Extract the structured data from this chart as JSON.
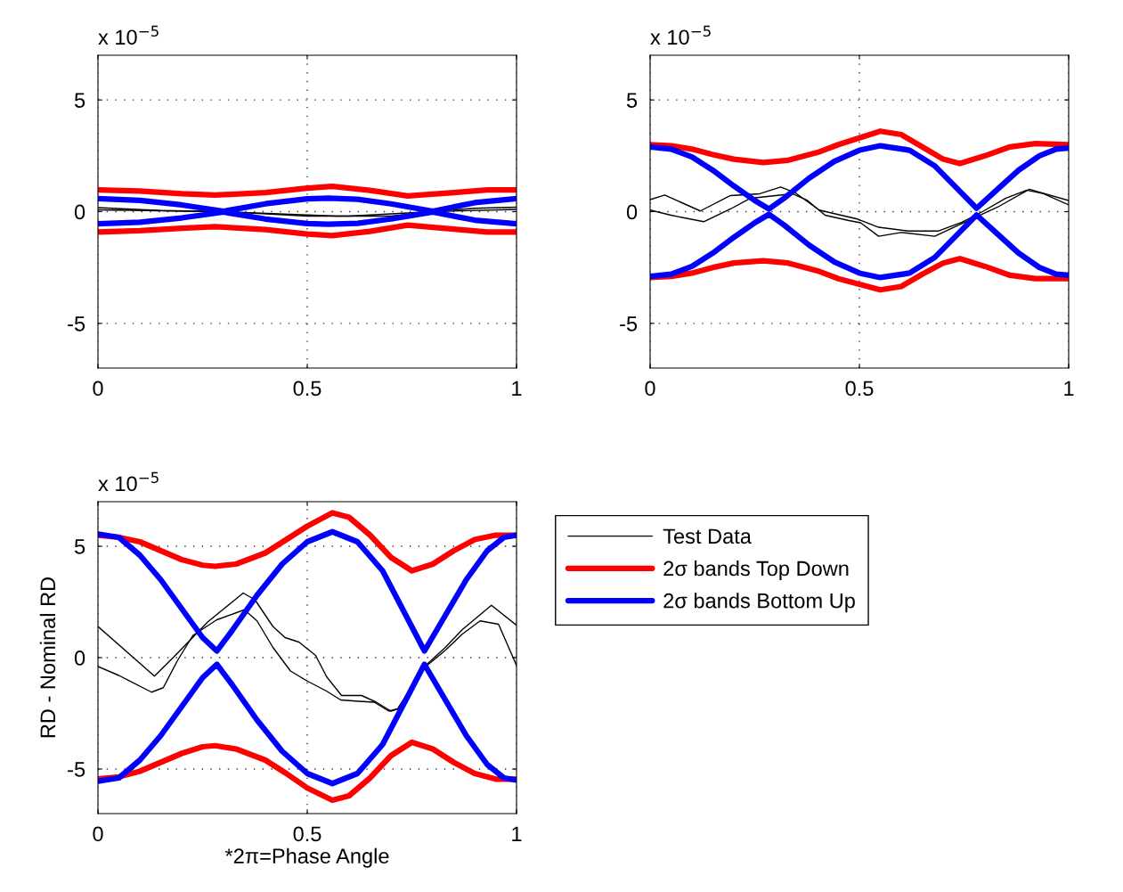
{
  "chart_data": [
    {
      "type": "line",
      "annotations": [
        "x 10$^{−5}$"
      ],
      "xlim": [
        0,
        1
      ],
      "ylim": [
        -7,
        7
      ],
      "xticks": [
        0,
        0.5,
        1
      ],
      "yticks": [
        -5,
        0,
        5
      ],
      "grid": true,
      "series": [
        {
          "color": "#000000",
          "x": [
            0,
            0.15,
            0.3,
            0.5,
            0.57,
            0.7,
            0.8,
            0.9,
            1
          ],
          "values": [
            0.18,
            0.05,
            0.0,
            -0.15,
            -0.2,
            -0.2,
            0.0,
            0.15,
            0.2
          ]
        },
        {
          "color": "#000000",
          "x": [
            0,
            0.3,
            0.5,
            0.6,
            0.8,
            1
          ],
          "values": [
            0.08,
            0.0,
            -0.2,
            -0.2,
            0.0,
            0.1
          ]
        },
        {
          "color": "#ff0000",
          "x": [
            0,
            0.1,
            0.2,
            0.28,
            0.4,
            0.5,
            0.56,
            0.65,
            0.74,
            0.85,
            0.93,
            1
          ],
          "values": [
            0.97,
            0.92,
            0.8,
            0.74,
            0.85,
            1.05,
            1.13,
            0.95,
            0.7,
            0.85,
            0.97,
            0.97
          ]
        },
        {
          "color": "#ff0000",
          "x": [
            0,
            0.1,
            0.2,
            0.28,
            0.4,
            0.5,
            0.56,
            0.65,
            0.74,
            0.85,
            0.93,
            1
          ],
          "values": [
            -0.91,
            -0.85,
            -0.74,
            -0.67,
            -0.8,
            -1.0,
            -1.07,
            -0.88,
            -0.6,
            -0.78,
            -0.91,
            -0.91
          ]
        },
        {
          "color": "#0000ff",
          "x": [
            0,
            0.1,
            0.2,
            0.3,
            0.4,
            0.5,
            0.55,
            0.62,
            0.7,
            0.8,
            0.9,
            1
          ],
          "values": [
            0.58,
            0.5,
            0.3,
            0.02,
            0.35,
            0.57,
            0.6,
            0.55,
            0.35,
            0.02,
            0.4,
            0.58
          ]
        },
        {
          "color": "#0000ff",
          "x": [
            0,
            0.1,
            0.2,
            0.3,
            0.4,
            0.5,
            0.55,
            0.62,
            0.7,
            0.8,
            0.9,
            1
          ],
          "values": [
            -0.54,
            -0.47,
            -0.28,
            -0.02,
            -0.33,
            -0.53,
            -0.56,
            -0.52,
            -0.33,
            -0.02,
            -0.38,
            -0.54
          ]
        }
      ]
    },
    {
      "type": "line",
      "annotations": [
        "x 10$^{−5}$"
      ],
      "xlim": [
        0,
        1
      ],
      "ylim": [
        -7,
        7
      ],
      "xticks": [
        0,
        0.5,
        1
      ],
      "yticks": [
        -5,
        0,
        5
      ],
      "grid": true,
      "series": [
        {
          "color": "#000000",
          "x": [
            0,
            0.035,
            0.12,
            0.192,
            0.262,
            0.312,
            0.348,
            0.404,
            0.497,
            0.546,
            0.617,
            0.688,
            0.745,
            0.794,
            0.85,
            0.9,
            0.94,
            1
          ],
          "values": [
            0.54,
            0.74,
            0.03,
            0.72,
            0.8,
            1.1,
            0.83,
            0.07,
            -0.34,
            -0.7,
            -0.87,
            -0.87,
            -0.47,
            0.0,
            0.6,
            0.96,
            0.8,
            0.3
          ]
        },
        {
          "color": "#000000",
          "x": [
            0,
            0.05,
            0.128,
            0.192,
            0.24,
            0.34,
            0.376,
            0.418,
            0.475,
            0.503,
            0.546,
            0.6,
            0.68,
            0.745,
            0.83,
            0.906,
            1
          ],
          "values": [
            0.07,
            -0.16,
            -0.45,
            0.12,
            0.6,
            0.8,
            0.5,
            -0.16,
            -0.4,
            -0.5,
            -1.1,
            -0.93,
            -1.1,
            -0.53,
            0.2,
            1.0,
            0.5
          ]
        },
        {
          "color": "#ff0000",
          "x": [
            0,
            0.05,
            0.1,
            0.15,
            0.2,
            0.27,
            0.33,
            0.4,
            0.45,
            0.5,
            0.55,
            0.6,
            0.65,
            0.7,
            0.74,
            0.8,
            0.86,
            0.92,
            1
          ],
          "values": [
            3.0,
            2.95,
            2.8,
            2.55,
            2.35,
            2.2,
            2.3,
            2.65,
            3.0,
            3.3,
            3.6,
            3.45,
            2.9,
            2.35,
            2.15,
            2.5,
            2.9,
            3.05,
            3.0
          ]
        },
        {
          "color": "#ff0000",
          "x": [
            0,
            0.05,
            0.1,
            0.15,
            0.2,
            0.27,
            0.33,
            0.4,
            0.45,
            0.5,
            0.55,
            0.6,
            0.65,
            0.7,
            0.74,
            0.8,
            0.86,
            0.92,
            1
          ],
          "values": [
            -2.95,
            -2.9,
            -2.75,
            -2.5,
            -2.3,
            -2.2,
            -2.3,
            -2.65,
            -3.0,
            -3.25,
            -3.5,
            -3.35,
            -2.8,
            -2.3,
            -2.1,
            -2.45,
            -2.85,
            -3.0,
            -3.0
          ]
        },
        {
          "color": "#0000ff",
          "x": [
            0,
            0.05,
            0.1,
            0.15,
            0.2,
            0.25,
            0.284,
            0.32,
            0.38,
            0.44,
            0.5,
            0.55,
            0.62,
            0.68,
            0.73,
            0.78,
            0.83,
            0.88,
            0.93,
            0.97,
            1
          ],
          "values": [
            2.9,
            2.8,
            2.45,
            1.85,
            1.15,
            0.5,
            0.12,
            0.6,
            1.5,
            2.25,
            2.75,
            2.95,
            2.75,
            2.05,
            1.1,
            0.15,
            1.0,
            1.85,
            2.5,
            2.8,
            2.85
          ]
        },
        {
          "color": "#0000ff",
          "x": [
            0,
            0.05,
            0.1,
            0.15,
            0.2,
            0.25,
            0.284,
            0.32,
            0.38,
            0.44,
            0.5,
            0.55,
            0.62,
            0.68,
            0.73,
            0.78,
            0.83,
            0.88,
            0.93,
            0.97,
            1
          ],
          "values": [
            -2.9,
            -2.8,
            -2.45,
            -1.85,
            -1.15,
            -0.5,
            -0.12,
            -0.6,
            -1.5,
            -2.25,
            -2.75,
            -2.95,
            -2.75,
            -2.05,
            -1.1,
            -0.15,
            -1.0,
            -1.85,
            -2.5,
            -2.8,
            -2.85
          ]
        }
      ]
    },
    {
      "type": "line",
      "annotations": [
        "x 10$^{−5}$"
      ],
      "xlabel": "*2π=Phase Angle",
      "ylabel": "RD - Nominal RD",
      "xlim": [
        0,
        1
      ],
      "ylim": [
        -7,
        7
      ],
      "xticks": [
        0,
        0.5,
        1
      ],
      "yticks": [
        -5,
        0,
        5
      ],
      "grid": true,
      "legend": "right",
      "series": [
        {
          "name": "Test Data",
          "color": "#000000",
          "x": [
            0,
            0.135,
            0.19,
            0.262,
            0.347,
            0.375,
            0.418,
            0.447,
            0.48,
            0.52,
            0.546,
            0.582,
            0.63,
            0.665,
            0.7,
            0.716,
            0.78,
            0.83,
            0.87,
            0.94,
            1
          ],
          "values": [
            1.4,
            -0.83,
            0.2,
            1.6,
            2.9,
            2.6,
            1.4,
            0.9,
            0.7,
            0.1,
            -0.85,
            -1.7,
            -1.7,
            -2.0,
            -2.4,
            -2.3,
            -0.4,
            0.46,
            1.25,
            2.35,
            1.45
          ]
        },
        {
          "color": "#000000",
          "x": [
            0,
            0.05,
            0.128,
            0.156,
            0.19,
            0.227,
            0.284,
            0.35,
            0.38,
            0.418,
            0.46,
            0.5,
            0.546,
            0.58,
            0.624,
            0.66,
            0.695,
            0.716,
            0.78,
            0.83,
            0.87,
            0.913,
            0.957,
            1
          ],
          "values": [
            -0.4,
            -0.8,
            -1.55,
            -1.35,
            -0.13,
            1.0,
            1.7,
            2.15,
            1.65,
            0.46,
            -0.6,
            -1.05,
            -1.5,
            -1.9,
            -1.96,
            -2.0,
            -2.4,
            -2.3,
            -0.45,
            0.33,
            1.05,
            1.65,
            1.5,
            -0.35
          ]
        },
        {
          "name": "2σ bands Top Down",
          "color": "#ff0000",
          "x": [
            0,
            0.05,
            0.1,
            0.15,
            0.2,
            0.25,
            0.28,
            0.33,
            0.4,
            0.45,
            0.5,
            0.56,
            0.6,
            0.65,
            0.7,
            0.75,
            0.8,
            0.85,
            0.9,
            0.95,
            1
          ],
          "values": [
            5.5,
            5.4,
            5.2,
            4.8,
            4.4,
            4.15,
            4.1,
            4.2,
            4.7,
            5.3,
            5.9,
            6.5,
            6.3,
            5.5,
            4.5,
            3.9,
            4.2,
            4.8,
            5.3,
            5.5,
            5.5
          ]
        },
        {
          "color": "#ff0000",
          "x": [
            0,
            0.05,
            0.1,
            0.15,
            0.2,
            0.25,
            0.28,
            0.33,
            0.4,
            0.45,
            0.5,
            0.56,
            0.6,
            0.65,
            0.7,
            0.75,
            0.8,
            0.85,
            0.9,
            0.95,
            1
          ],
          "values": [
            -5.45,
            -5.35,
            -5.1,
            -4.7,
            -4.3,
            -4.0,
            -3.95,
            -4.1,
            -4.6,
            -5.2,
            -5.85,
            -6.4,
            -6.2,
            -5.4,
            -4.4,
            -3.8,
            -4.1,
            -4.7,
            -5.2,
            -5.45,
            -5.45
          ]
        },
        {
          "name": "2σ bands Bottom Up",
          "color": "#0000ff",
          "x": [
            0,
            0.05,
            0.1,
            0.15,
            0.2,
            0.25,
            0.284,
            0.32,
            0.38,
            0.44,
            0.5,
            0.56,
            0.62,
            0.68,
            0.73,
            0.78,
            0.83,
            0.88,
            0.93,
            0.97,
            1
          ],
          "values": [
            5.55,
            5.4,
            4.6,
            3.5,
            2.2,
            0.9,
            0.3,
            1.2,
            2.8,
            4.2,
            5.2,
            5.65,
            5.2,
            3.9,
            2.1,
            0.3,
            1.9,
            3.5,
            4.8,
            5.4,
            5.5
          ]
        },
        {
          "color": "#0000ff",
          "x": [
            0,
            0.05,
            0.1,
            0.15,
            0.2,
            0.25,
            0.284,
            0.32,
            0.38,
            0.44,
            0.5,
            0.56,
            0.62,
            0.68,
            0.73,
            0.78,
            0.83,
            0.88,
            0.93,
            0.97,
            1
          ],
          "values": [
            -5.55,
            -5.4,
            -4.6,
            -3.5,
            -2.2,
            -0.9,
            -0.3,
            -1.2,
            -2.8,
            -4.2,
            -5.2,
            -5.65,
            -5.2,
            -3.9,
            -2.1,
            -0.3,
            -1.9,
            -3.5,
            -4.8,
            -5.4,
            -5.5
          ]
        }
      ]
    }
  ]
}
